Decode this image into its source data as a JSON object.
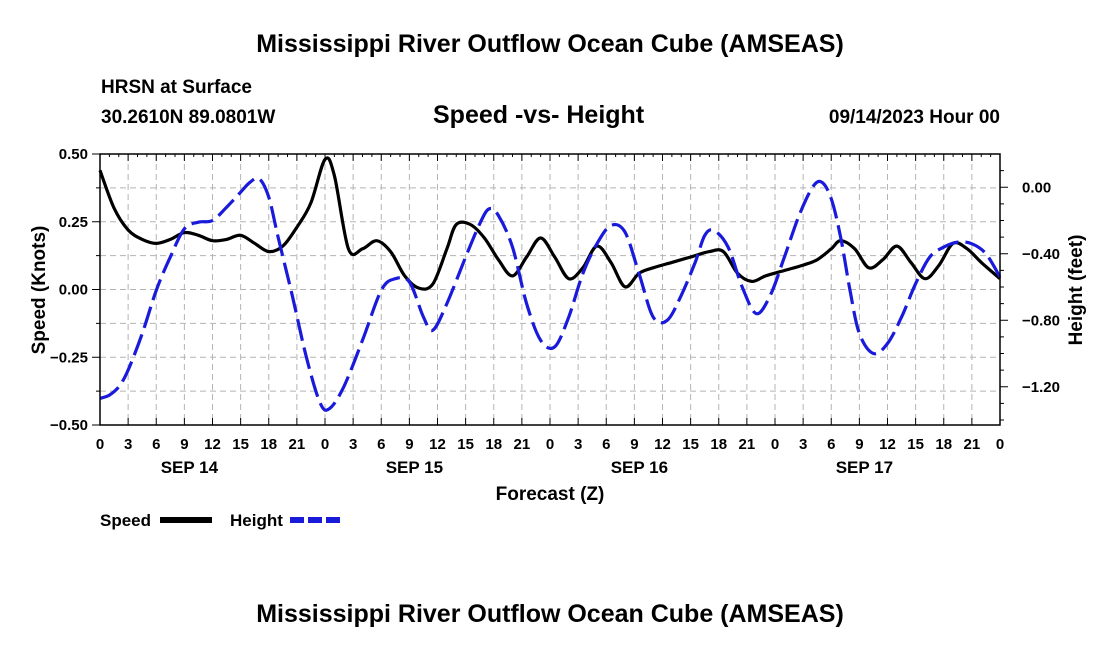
{
  "header": {
    "title": "Mississippi River Outflow Ocean Cube (AMSEAS)",
    "station": "HRSN at Surface",
    "location": "30.2610N  89.0801W",
    "chart_title": "Speed -vs- Height",
    "issue_time": "09/14/2023 Hour 00",
    "footer_title": "Mississippi River Outflow Ocean Cube (AMSEAS)"
  },
  "colors": {
    "speed": "#000000",
    "height": "#1a1adb",
    "grid": "#b4b4b4"
  },
  "chart_data": {
    "type": "line",
    "title": "Speed -vs- Height",
    "xlabel": "Forecast (Z)",
    "ylabel_left": "Speed (Knots)",
    "ylabel_right": "Height (feet)",
    "x_range_hours": [
      0,
      96
    ],
    "ylim_left": [
      -0.5,
      0.5
    ],
    "ylim_right": [
      -1.43,
      0.2
    ],
    "left_ticks": [
      {
        "value": 0.5,
        "label": "0.50"
      },
      {
        "value": 0.25,
        "label": "0.25"
      },
      {
        "value": 0.0,
        "label": "0.00"
      },
      {
        "value": -0.25,
        "label": "−0.25"
      },
      {
        "value": -0.5,
        "label": "−0.50"
      }
    ],
    "right_ticks": [
      {
        "value": 0.0,
        "label": "0.00"
      },
      {
        "value": -0.4,
        "label": "−0.40"
      },
      {
        "value": -0.8,
        "label": "−0.80"
      },
      {
        "value": -1.2,
        "label": "−1.20"
      }
    ],
    "x_tick_labels": [
      "0",
      "3",
      "6",
      "9",
      "12",
      "15",
      "18",
      "21",
      "0",
      "3",
      "6",
      "9",
      "12",
      "15",
      "18",
      "21",
      "0",
      "3",
      "6",
      "9",
      "12",
      "15",
      "18",
      "21",
      "0",
      "3",
      "6",
      "9",
      "12",
      "15",
      "18",
      "21",
      "0"
    ],
    "day_labels": [
      {
        "hour": 9,
        "label": "SEP 14"
      },
      {
        "hour": 33,
        "label": "SEP 15"
      },
      {
        "hour": 57,
        "label": "SEP 16"
      },
      {
        "hour": 81,
        "label": "SEP 17"
      }
    ],
    "grid": true,
    "legend": [
      {
        "label": "Speed",
        "series": "speed"
      },
      {
        "label": "Height",
        "series": "height"
      }
    ],
    "series": [
      {
        "name": "Speed",
        "axis": "left",
        "style": "solid",
        "points": [
          [
            0,
            0.44
          ],
          [
            1.5,
            0.3
          ],
          [
            3,
            0.22
          ],
          [
            4.5,
            0.185
          ],
          [
            6,
            0.17
          ],
          [
            7.5,
            0.185
          ],
          [
            9,
            0.21
          ],
          [
            10.5,
            0.2
          ],
          [
            12,
            0.18
          ],
          [
            13.5,
            0.185
          ],
          [
            15,
            0.2
          ],
          [
            16.5,
            0.17
          ],
          [
            18,
            0.14
          ],
          [
            19.5,
            0.16
          ],
          [
            21,
            0.23
          ],
          [
            22.5,
            0.32
          ],
          [
            24,
            0.48
          ],
          [
            25,
            0.42
          ],
          [
            26.5,
            0.15
          ],
          [
            28,
            0.15
          ],
          [
            29.5,
            0.18
          ],
          [
            31,
            0.14
          ],
          [
            32.5,
            0.05
          ],
          [
            34,
            0.005
          ],
          [
            35.5,
            0.02
          ],
          [
            37,
            0.15
          ],
          [
            38,
            0.24
          ],
          [
            39.5,
            0.24
          ],
          [
            41,
            0.19
          ],
          [
            42.5,
            0.11
          ],
          [
            44,
            0.05
          ],
          [
            45.5,
            0.12
          ],
          [
            47,
            0.19
          ],
          [
            48.5,
            0.12
          ],
          [
            50,
            0.04
          ],
          [
            51.5,
            0.08
          ],
          [
            53,
            0.16
          ],
          [
            54.5,
            0.1
          ],
          [
            56,
            0.01
          ],
          [
            57.5,
            0.06
          ],
          [
            59,
            0.08
          ],
          [
            61,
            0.1
          ],
          [
            63,
            0.12
          ],
          [
            65,
            0.14
          ],
          [
            66.5,
            0.14
          ],
          [
            68,
            0.06
          ],
          [
            69.5,
            0.03
          ],
          [
            71,
            0.05
          ],
          [
            73,
            0.07
          ],
          [
            75,
            0.09
          ],
          [
            76.5,
            0.11
          ],
          [
            78,
            0.15
          ],
          [
            79,
            0.18
          ],
          [
            80.5,
            0.15
          ],
          [
            82,
            0.08
          ],
          [
            83.5,
            0.11
          ],
          [
            85,
            0.16
          ],
          [
            86.5,
            0.1
          ],
          [
            88,
            0.04
          ],
          [
            89.5,
            0.09
          ],
          [
            91,
            0.17
          ],
          [
            92.5,
            0.15
          ],
          [
            94,
            0.1
          ],
          [
            96,
            0.04
          ]
        ]
      },
      {
        "name": "Height",
        "axis": "right",
        "style": "dashed",
        "points": [
          [
            0,
            -1.27
          ],
          [
            1,
            -1.25
          ],
          [
            2,
            -1.2
          ],
          [
            3,
            -1.1
          ],
          [
            4.5,
            -0.88
          ],
          [
            6,
            -0.62
          ],
          [
            7.5,
            -0.42
          ],
          [
            9,
            -0.25
          ],
          [
            10.5,
            -0.21
          ],
          [
            12,
            -0.2
          ],
          [
            13.5,
            -0.12
          ],
          [
            15,
            -0.03
          ],
          [
            16,
            0.03
          ],
          [
            17,
            0.05
          ],
          [
            18,
            -0.06
          ],
          [
            19,
            -0.3
          ],
          [
            20.5,
            -0.65
          ],
          [
            22,
            -1.02
          ],
          [
            23.5,
            -1.3
          ],
          [
            24.5,
            -1.33
          ],
          [
            26,
            -1.2
          ],
          [
            28,
            -0.92
          ],
          [
            30,
            -0.62
          ],
          [
            31.5,
            -0.55
          ],
          [
            33,
            -0.57
          ],
          [
            34.5,
            -0.78
          ],
          [
            35.5,
            -0.86
          ],
          [
            37,
            -0.7
          ],
          [
            39,
            -0.42
          ],
          [
            40.5,
            -0.22
          ],
          [
            41.5,
            -0.13
          ],
          [
            42.5,
            -0.17
          ],
          [
            44,
            -0.36
          ],
          [
            45.5,
            -0.7
          ],
          [
            47,
            -0.92
          ],
          [
            48.5,
            -0.96
          ],
          [
            50,
            -0.78
          ],
          [
            51.5,
            -0.52
          ],
          [
            53,
            -0.34
          ],
          [
            54.5,
            -0.23
          ],
          [
            56,
            -0.27
          ],
          [
            57.5,
            -0.52
          ],
          [
            59,
            -0.78
          ],
          [
            60.5,
            -0.8
          ],
          [
            62,
            -0.65
          ],
          [
            63.5,
            -0.45
          ],
          [
            64.5,
            -0.29
          ],
          [
            65.5,
            -0.26
          ],
          [
            67,
            -0.36
          ],
          [
            68.5,
            -0.6
          ],
          [
            70,
            -0.76
          ],
          [
            71.5,
            -0.65
          ],
          [
            73,
            -0.42
          ],
          [
            74.5,
            -0.18
          ],
          [
            76,
            0.0
          ],
          [
            77,
            0.03
          ],
          [
            78,
            -0.07
          ],
          [
            79,
            -0.3
          ],
          [
            80,
            -0.62
          ],
          [
            81,
            -0.88
          ],
          [
            82.5,
            -1.0
          ],
          [
            84,
            -0.94
          ],
          [
            85.5,
            -0.78
          ],
          [
            87,
            -0.58
          ],
          [
            88.5,
            -0.42
          ],
          [
            90,
            -0.36
          ],
          [
            91.5,
            -0.33
          ],
          [
            93,
            -0.34
          ],
          [
            94.5,
            -0.4
          ],
          [
            96,
            -0.54
          ]
        ]
      }
    ]
  }
}
